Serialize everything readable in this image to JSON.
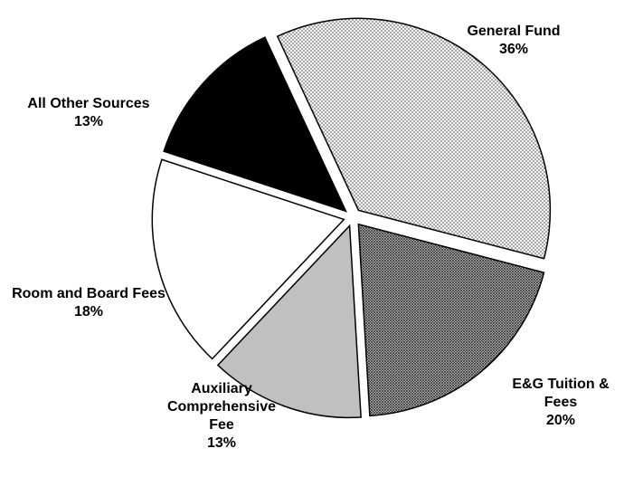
{
  "chart_data": {
    "type": "pie",
    "categories": [
      "General Fund",
      "E&G Tuition & Fees",
      "Auxiliary Comprehensive Fee",
      "Room and Board Fees",
      "All Other Sources"
    ],
    "values": [
      36,
      20,
      13,
      18,
      13
    ],
    "value_labels": [
      "36%",
      "20%",
      "13%",
      "18%",
      "13%"
    ],
    "colors": [
      "#ffffff",
      "#ffffff",
      "#c0c0c0",
      "#ffffff",
      "#000000"
    ],
    "hatch": [
      "light",
      "dark",
      null,
      null,
      null
    ]
  }
}
